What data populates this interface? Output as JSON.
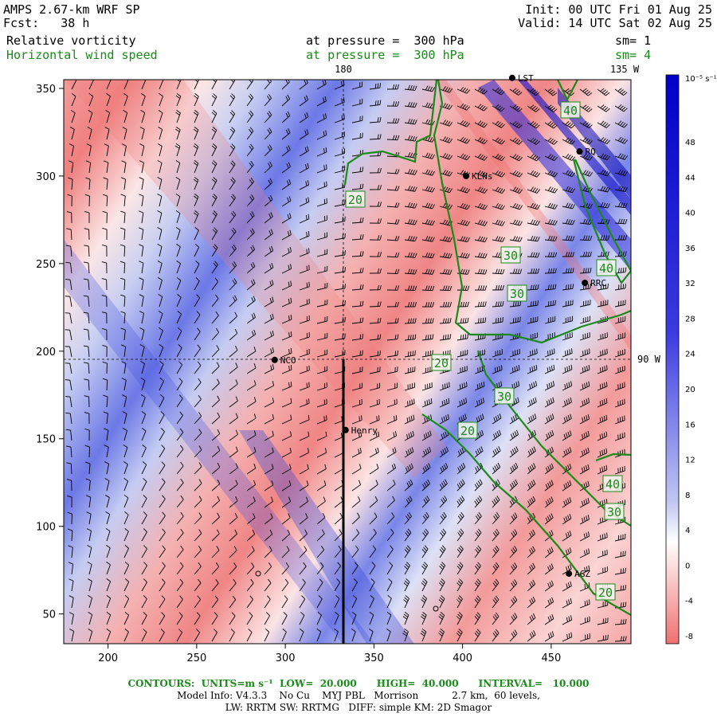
{
  "header": {
    "model": "AMPS 2.67-km WRF SP",
    "forecast": "Fcst:   38 h",
    "init": "Init: 00 UTC Fri 01 Aug 25",
    "valid": "Valid: 14 UTC Sat 02 Aug 25",
    "field1": "Relative vorticity",
    "field2": "Horizontal wind speed",
    "pressure1": "at pressure =  300 hPa",
    "pressure2": "at pressure =  300 hPa",
    "smooth1": "sm= 1",
    "smooth2": "sm= 4"
  },
  "map": {
    "x_ticks": [
      "200",
      "250",
      "300",
      "350",
      "400",
      "450"
    ],
    "y_ticks": [
      "50",
      "100",
      "150",
      "200",
      "250",
      "300",
      "350"
    ],
    "x_range": [
      175,
      495
    ],
    "y_range": [
      33,
      355
    ],
    "meridian_label": "180",
    "corner_label": "135 W",
    "right_label": "90 W",
    "stations": [
      {
        "name": "NCO",
        "x": 294,
        "y": 195
      },
      {
        "name": "Henry",
        "x": 334,
        "y": 155
      },
      {
        "name": "KLNs",
        "x": 402,
        "y": 300
      },
      {
        "name": "RQ",
        "x": 466,
        "y": 314
      },
      {
        "name": "RRC",
        "x": 469,
        "y": 239
      },
      {
        "name": "AGZ",
        "x": 460,
        "y": 73
      },
      {
        "name": "LST",
        "x": 428,
        "y": 356
      }
    ],
    "contour_labels": [
      "20",
      "30",
      "30",
      "40",
      "20",
      "30",
      "20",
      "40",
      "30",
      "20",
      "40"
    ]
  },
  "colorbar": {
    "unit": "10⁻⁵ s⁻¹",
    "ticks": [
      "48",
      "44",
      "40",
      "36",
      "32",
      "28",
      "24",
      "20",
      "16",
      "12",
      "8",
      "4",
      "0",
      "-4",
      "-8"
    ]
  },
  "footer": {
    "contours": "CONTOURS:  UNITS=m s⁻¹  LOW=  20.000      HIGH=  40.000      INTERVAL=   10.000",
    "model_info": "Model Info: V4.3.3    No Cu    MYJ PBL   Morrison           2.7 km,  60 levels,",
    "physics": "LW: RRTM SW: RRTMG   DIFF: simple KM: 2D Smagor"
  },
  "colors": {
    "positive": "#1010e0",
    "negative": "#f08080",
    "contour": "#1a8a1a"
  }
}
